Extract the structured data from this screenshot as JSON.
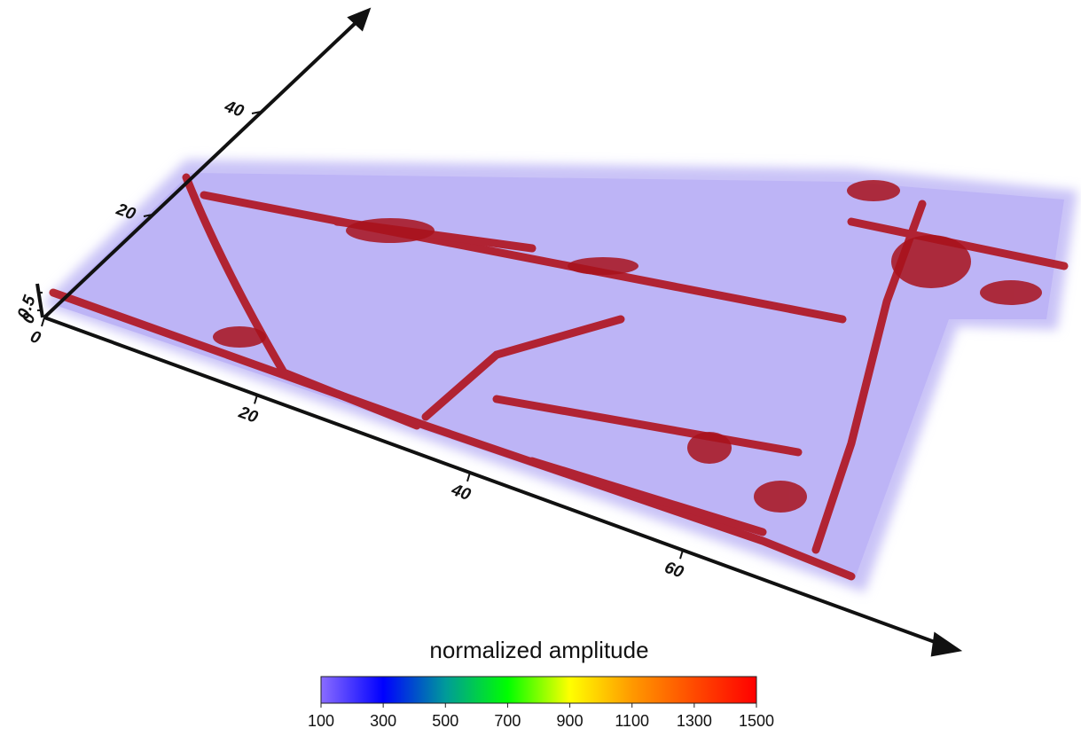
{
  "chart_data": {
    "type": "volume-3d",
    "x_ticks": [
      0,
      20,
      40,
      60
    ],
    "y_ticks": [
      20,
      40
    ],
    "z_ticks": [
      0,
      0.5
    ],
    "colorbar": {
      "title": "normalized amplitude",
      "ticks": [
        100,
        300,
        500,
        700,
        900,
        1100,
        1300,
        1500
      ],
      "colors": [
        "#8a6cff",
        "#0000ff",
        "#009a9a",
        "#00ff00",
        "#ffff00",
        "#ff9900",
        "#ff4a00",
        "#ff0000"
      ]
    }
  }
}
